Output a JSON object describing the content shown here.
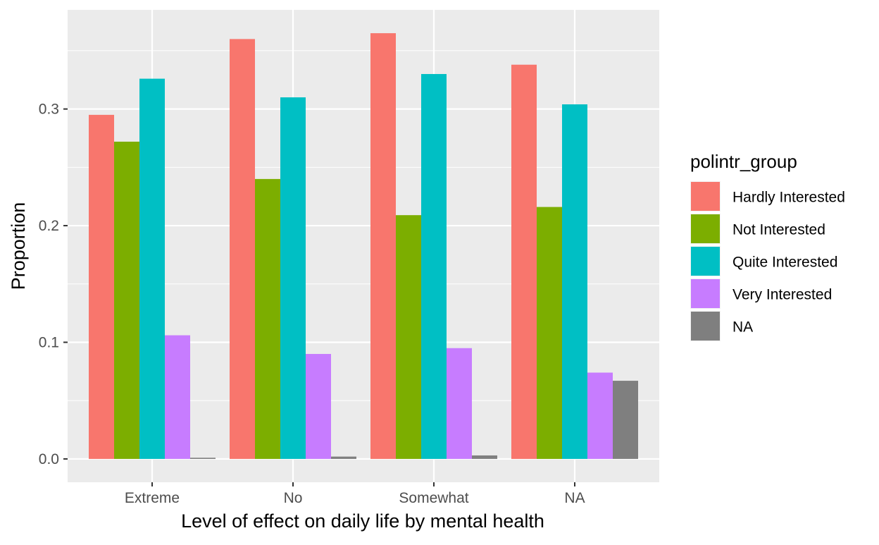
{
  "chart_data": {
    "type": "bar",
    "xlabel": "Level of effect on daily life by mental health",
    "ylabel": "Proportion",
    "categories": [
      "Extreme",
      "No",
      "Somewhat",
      "NA"
    ],
    "ylim": [
      -0.02,
      0.385
    ],
    "yticks": [
      0.0,
      0.1,
      0.2,
      0.3
    ],
    "ytick_labels": [
      "0.0",
      "0.1",
      "0.2",
      "0.3"
    ],
    "grid": true,
    "legend": {
      "title": "polintr_group",
      "position": "right"
    },
    "series": [
      {
        "name": "Hardly Interested",
        "color": "#F8766D",
        "values": [
          0.295,
          0.36,
          0.365,
          0.338
        ]
      },
      {
        "name": "Not Interested",
        "color": "#7CAE00",
        "values": [
          0.272,
          0.24,
          0.209,
          0.216
        ]
      },
      {
        "name": "Quite Interested",
        "color": "#00BFC4",
        "values": [
          0.326,
          0.31,
          0.33,
          0.304
        ]
      },
      {
        "name": "Very Interested",
        "color": "#C77CFF",
        "values": [
          0.106,
          0.09,
          0.095,
          0.074
        ]
      },
      {
        "name": "NA",
        "color": "#7F7F7F",
        "values": [
          0.001,
          0.002,
          0.003,
          0.067
        ]
      }
    ]
  }
}
